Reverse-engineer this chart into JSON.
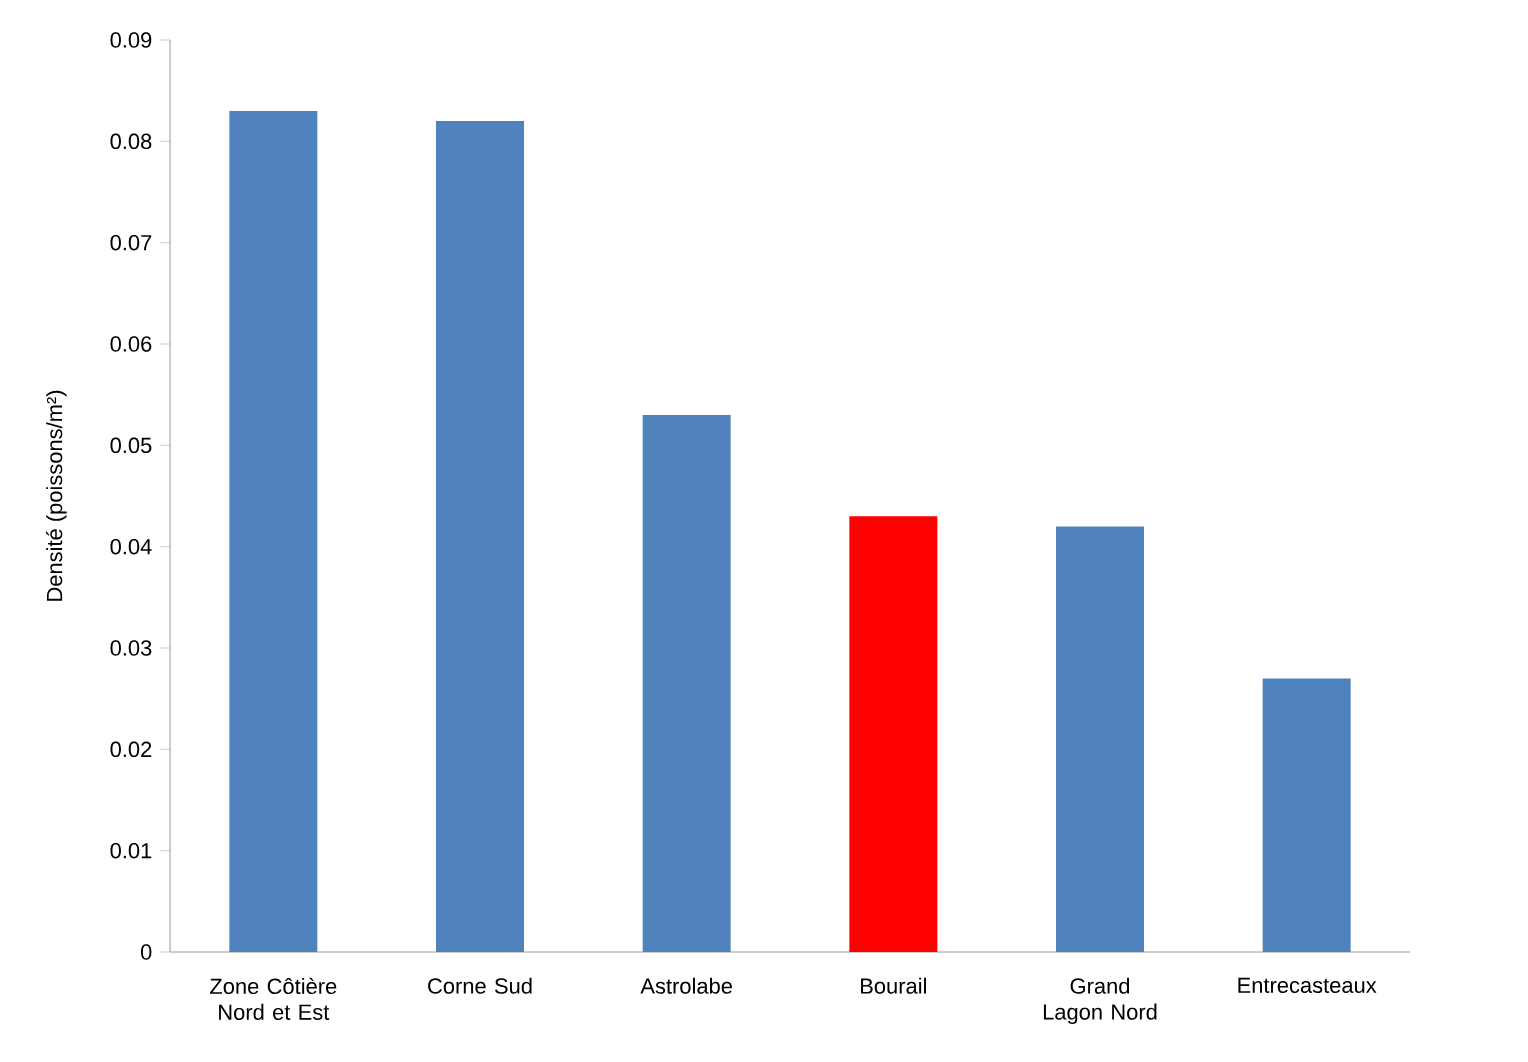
{
  "chart_data": {
    "type": "bar",
    "ylabel": "Densité (poissons/m²)",
    "categories": [
      "Zone Côtière Nord et Est",
      "Corne Sud",
      "Astrolabe",
      "Bourail",
      "Grand Lagon Nord",
      "Entrecasteaux"
    ],
    "values": [
      0.083,
      0.082,
      0.053,
      0.043,
      0.042,
      0.027
    ],
    "colors": [
      "#4f81bd",
      "#4f81bd",
      "#4f81bd",
      "#ff0000",
      "#4f81bd",
      "#4f81bd"
    ],
    "ylim": [
      0,
      0.09
    ],
    "yticks": [
      0,
      0.01,
      0.02,
      0.03,
      0.04,
      0.05,
      0.06,
      0.07,
      0.08,
      0.09
    ],
    "grid": false
  }
}
